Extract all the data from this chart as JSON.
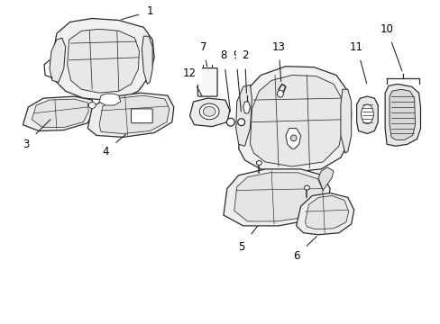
{
  "background_color": "#ffffff",
  "line_color": "#2a2a2a",
  "label_color": "#000000",
  "figsize": [
    4.89,
    3.6
  ],
  "dpi": 100,
  "label_fontsize": 8.5
}
